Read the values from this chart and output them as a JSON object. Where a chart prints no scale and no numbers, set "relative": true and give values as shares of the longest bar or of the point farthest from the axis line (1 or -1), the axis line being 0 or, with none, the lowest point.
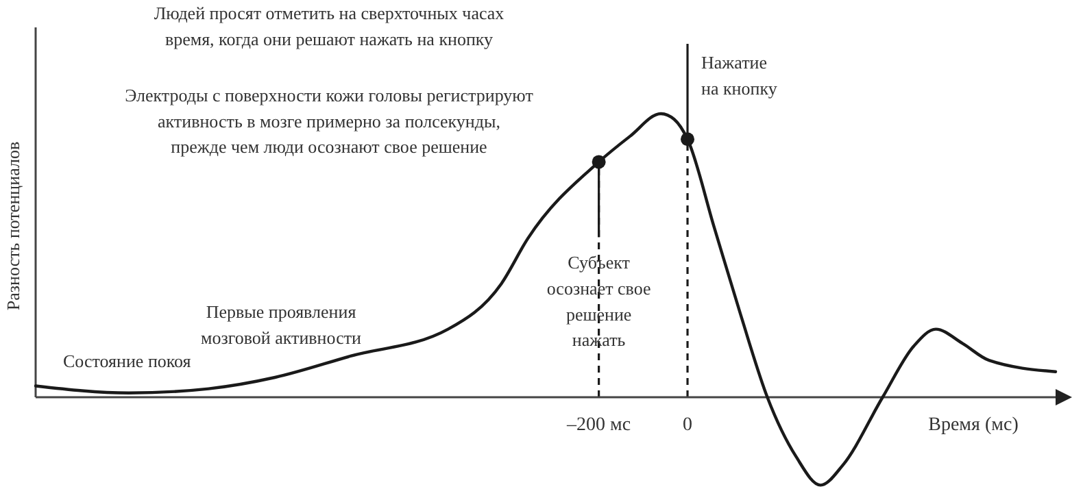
{
  "chart_data": {
    "type": "line",
    "relative": true,
    "xlabel": "Время (мс)",
    "ylabel": "Разность потенциалов",
    "xlim": [
      -1470,
      830
    ],
    "xticks": [
      {
        "value": -200,
        "label": "–200 мс"
      },
      0
    ],
    "tick_labels": "x",
    "series": [
      {
        "color": "#1a1a1a",
        "marker": "none",
        "x": [
          -1470,
          -1260,
          -1080,
          -930,
          -760,
          -540,
          -420,
          -360,
          -200,
          -130,
          -60,
          -30,
          0,
          60,
          120,
          180,
          245,
          300,
          350,
          440,
          510,
          560,
          620,
          680,
          830
        ],
        "values": [
          0.04,
          0.015,
          0.03,
          0.07,
          0.145,
          0.24,
          0.4,
          0.56,
          0.83,
          0.92,
          1,
          0.98,
          0.91,
          0.6,
          0.29,
          0,
          -0.21,
          -0.31,
          -0.24,
          0,
          0.18,
          0.24,
          0.19,
          0.13,
          0.09
        ]
      },
      {
        "type": "scatter",
        "color": "#1a1a1a",
        "marker": "circle",
        "x": [
          -200,
          0
        ],
        "values": [
          0.83,
          0.91
        ]
      }
    ],
    "ref_lines": [
      {
        "axis": "x",
        "value": -200,
        "line_style": "dashed"
      },
      {
        "axis": "x",
        "value": 0,
        "line_style": "dashed"
      }
    ],
    "annotations": [
      "Людей просят отметить на сверхточных часах\nвремя, когда они решают нажать на кнопку",
      "Электроды с поверхности кожи головы регистрируют\nактивность в мозге примерно за полсекунды,\nпрежде чем люди осознают свое решение",
      "Состояние покоя",
      "Первые проявления\nмозговой активности",
      {
        "text": "Субъект\nосознает свое\nрешение\nнажать",
        "x": -200,
        "y": 0.83
      },
      {
        "text": "Нажатие\nна кнопку",
        "x": 0,
        "y": 0.91
      }
    ]
  }
}
